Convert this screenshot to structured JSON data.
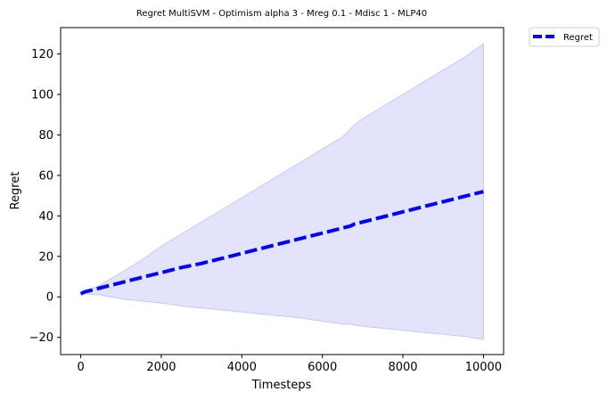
{
  "chart_data": {
    "type": "line",
    "title": "Regret MultiSVM - Optimism alpha 3 - Mreg 0.1 - Mdisc 1 - MLP40",
    "xlabel": "Timesteps",
    "ylabel": "Regret",
    "xlim": [
      -500,
      10500
    ],
    "ylim": [
      -28.5,
      133
    ],
    "xticks": [
      0,
      2000,
      4000,
      6000,
      8000,
      10000
    ],
    "yticks": [
      -20,
      0,
      20,
      40,
      60,
      80,
      100,
      120
    ],
    "xtick_labels": [
      "0",
      "2000",
      "4000",
      "6000",
      "8000",
      "10000"
    ],
    "ytick_labels": [
      "−20",
      "0",
      "20",
      "40",
      "60",
      "80",
      "100",
      "120"
    ],
    "legend": {
      "position": "outside-top-right",
      "entries": [
        "Regret"
      ]
    },
    "grid": false,
    "series": [
      {
        "name": "Regret",
        "style": "dashed",
        "color": "#0000ff",
        "x": [
          0,
          100,
          500,
          1000,
          1500,
          2000,
          2500,
          3000,
          3500,
          4000,
          4500,
          5000,
          5500,
          6000,
          6500,
          6700,
          6800,
          7000,
          7500,
          8000,
          8500,
          9000,
          9500,
          10000
        ],
        "y": [
          1.5,
          2.5,
          4.5,
          7,
          9.5,
          12,
          14.5,
          16.5,
          19,
          21.5,
          24,
          26.5,
          29,
          31.5,
          34,
          35,
          36,
          37,
          39.5,
          42,
          44.5,
          47,
          49.5,
          52
        ]
      }
    ],
    "band": {
      "color": "#e3e3fb",
      "edge_color": "#c8c8f5",
      "x": [
        0,
        500,
        1000,
        1500,
        2000,
        2500,
        3000,
        3500,
        4000,
        4500,
        5000,
        5500,
        6000,
        6500,
        6700,
        6800,
        7000,
        7500,
        8000,
        8500,
        9000,
        9500,
        10000
      ],
      "upper": [
        1.5,
        6,
        12,
        18,
        25,
        31,
        37,
        43,
        49,
        55,
        61,
        67,
        73,
        79,
        83,
        85,
        88,
        94,
        100,
        106,
        112,
        118,
        125
      ],
      "lower": [
        1.5,
        1,
        -1,
        -2,
        -3,
        -4.5,
        -5.5,
        -6.5,
        -7.5,
        -8.5,
        -9.5,
        -10.5,
        -12,
        -13.5,
        -13.5,
        -14,
        -14.5,
        -15.5,
        -16.5,
        -17.5,
        -18.5,
        -19.5,
        -21
      ]
    }
  }
}
